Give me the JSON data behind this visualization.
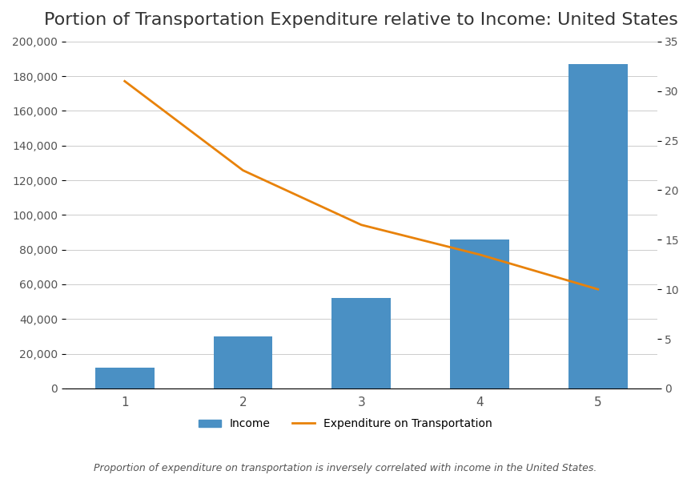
{
  "title": "Portion of Transportation Expenditure relative to Income: United States",
  "categories": [
    1,
    2,
    3,
    4,
    5
  ],
  "income_values": [
    12000,
    30000,
    52000,
    86000,
    187000
  ],
  "expenditure_pct": [
    31.0,
    22.0,
    16.5,
    13.5,
    10.0
  ],
  "bar_color": "#4A90C4",
  "line_color": "#E8820A",
  "left_ylim": [
    0,
    200000
  ],
  "right_ylim": [
    0,
    35
  ],
  "left_yticks": [
    0,
    20000,
    40000,
    60000,
    80000,
    100000,
    120000,
    140000,
    160000,
    180000,
    200000
  ],
  "right_yticks": [
    0,
    5,
    10,
    15,
    20,
    25,
    30,
    35
  ],
  "legend_income": "Income",
  "legend_expenditure": "Expenditure on Transportation",
  "caption": "Proportion of expenditure on transportation is inversely correlated with income in the United States.",
  "background_color": "#FFFFFF",
  "grid_color": "#CCCCCC",
  "title_fontsize": 16,
  "bar_width": 0.5
}
